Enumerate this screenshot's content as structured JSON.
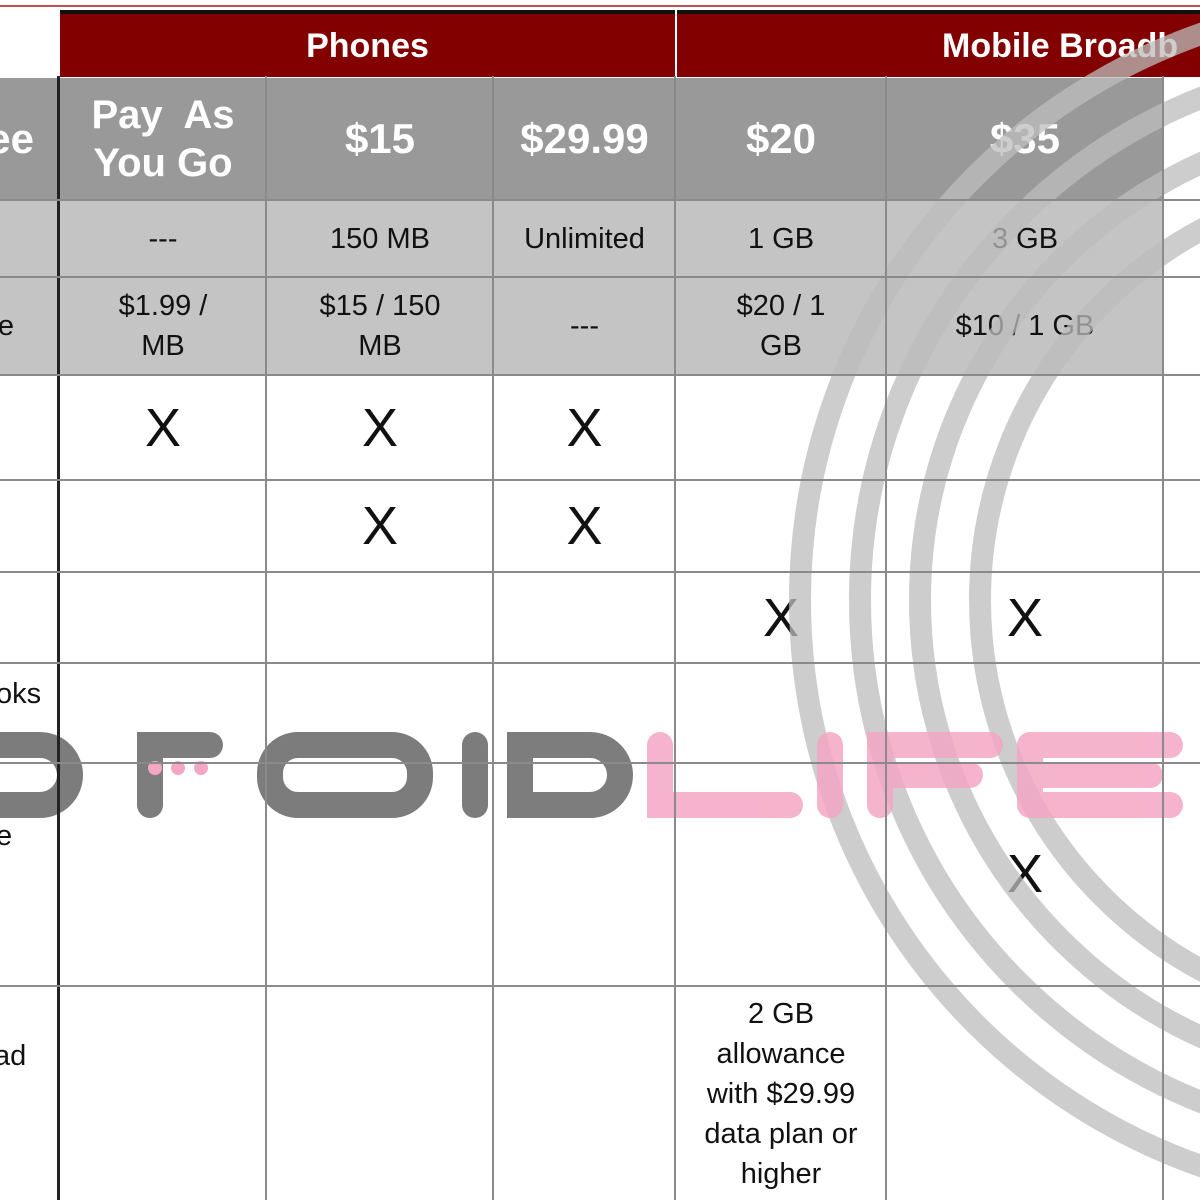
{
  "groups": {
    "phones": "Phones",
    "mobile_broadband": "Mobile Broadb"
  },
  "row_label_fragments": [
    "ee",
    "e",
    "oks",
    "e",
    "ad"
  ],
  "plans": [
    {
      "price": "Pay  As You Go",
      "allowance": "---",
      "overage": "$1.99 / MB",
      "rows": [
        "X",
        "",
        "",
        "",
        "",
        ""
      ]
    },
    {
      "price": "$15",
      "allowance": "150 MB",
      "overage": "$15 / 150 MB",
      "rows": [
        "X",
        "X",
        "",
        "",
        "",
        ""
      ]
    },
    {
      "price": "$29.99",
      "allowance": "Unlimited",
      "overage": "---",
      "rows": [
        "X",
        "X",
        "",
        "",
        "",
        ""
      ]
    },
    {
      "price": "$20",
      "allowance": "1 GB",
      "overage": "$20 / 1 GB",
      "rows": [
        "",
        "",
        "X",
        "",
        "",
        "2 GB allowance with $29.99 data plan or higher"
      ]
    },
    {
      "price": "$35",
      "allowance": "3 GB",
      "overage": "$10 / 1 GB",
      "rows": [
        "",
        "",
        "X",
        "",
        "X",
        ""
      ]
    }
  ],
  "watermark": "DROIDLIFE",
  "colors": {
    "header": "#820000",
    "price_row": "#999999",
    "light_row": "#c4c4c4"
  }
}
